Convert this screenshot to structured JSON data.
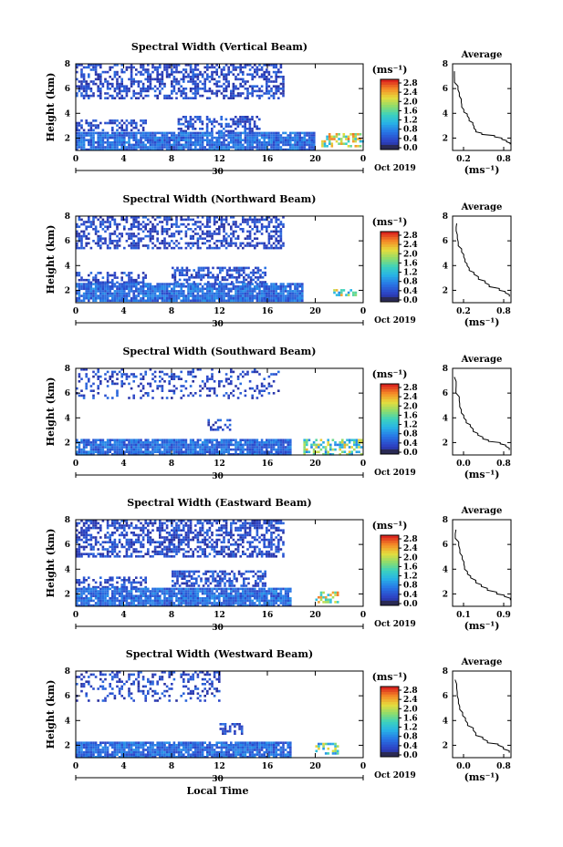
{
  "chart_data": [
    {
      "type": "heatmap",
      "title": "Spectral Width (Vertical Beam)",
      "ylabel": "Height (km)",
      "ylim": [
        1,
        8
      ],
      "yticks": [
        2,
        4,
        6,
        8
      ],
      "xticks": [
        "0",
        "4",
        "8",
        "12",
        "16",
        "20",
        "0"
      ],
      "date_label": "30",
      "month_label": "Oct 2019",
      "colorbar": {
        "unit": "(ms⁻¹)",
        "ticks": [
          "2.8",
          "2.4",
          "2.0",
          "1.6",
          "1.2",
          "0.8",
          "0.4",
          "0.0"
        ],
        "range": [
          0.0,
          2.8
        ]
      },
      "average": {
        "title": "Average",
        "xlabel": "(ms⁻¹)",
        "xticks": [
          "0.2",
          "0.8"
        ],
        "xlim": [
          0.0,
          1.0
        ],
        "ylim": [
          1,
          8
        ],
        "yticks": [
          2,
          4,
          6,
          8
        ],
        "profile": [
          [
            0.98,
            1.5
          ],
          [
            0.9,
            1.7
          ],
          [
            0.85,
            1.9
          ],
          [
            0.7,
            2.1
          ],
          [
            0.5,
            2.3
          ],
          [
            0.4,
            2.5
          ],
          [
            0.36,
            2.8
          ],
          [
            0.33,
            3.1
          ],
          [
            0.29,
            3.4
          ],
          [
            0.24,
            3.8
          ],
          [
            0.2,
            4.1
          ],
          [
            0.18,
            4.5
          ],
          [
            0.13,
            4.9
          ],
          [
            0.1,
            5.4
          ],
          [
            0.07,
            5.9
          ],
          [
            0.05,
            6.5
          ],
          [
            0.04,
            7.0
          ],
          [
            0.05,
            7.4
          ]
        ]
      },
      "clusters": [
        {
          "x": [
            0,
            17.5
          ],
          "y": [
            5.1,
            8
          ],
          "level": 0.35,
          "density": 0.55
        },
        {
          "x": [
            0,
            6
          ],
          "y": [
            2.6,
            3.5
          ],
          "level": 0.4,
          "density": 0.5
        },
        {
          "x": [
            8.5,
            15.5
          ],
          "y": [
            2.5,
            3.8
          ],
          "level": 0.4,
          "density": 0.55
        },
        {
          "x": [
            0,
            20
          ],
          "y": [
            1.0,
            2.5
          ],
          "level": 0.6,
          "density": 0.9
        },
        {
          "x": [
            20.5,
            24
          ],
          "y": [
            1.2,
            2.4
          ],
          "level": 1.8,
          "density": 0.6
        }
      ]
    },
    {
      "type": "heatmap",
      "title": "Spectral Width (Northward Beam)",
      "ylabel": "Height (km)",
      "ylim": [
        1,
        8
      ],
      "yticks": [
        2,
        4,
        6,
        8
      ],
      "xticks": [
        "0",
        "4",
        "8",
        "12",
        "16",
        "20",
        "0"
      ],
      "date_label": "30",
      "month_label": "Oct 2019",
      "colorbar": {
        "unit": "(ms⁻¹)",
        "ticks": [
          "2.8",
          "2.4",
          "2.0",
          "1.6",
          "1.2",
          "0.8",
          "0.4",
          "0.0"
        ],
        "range": [
          0.0,
          2.8
        ]
      },
      "average": {
        "title": "Average",
        "xlabel": "(ms⁻¹)",
        "xticks": [
          "0.2",
          "0.8"
        ],
        "xlim": [
          0.0,
          1.0
        ],
        "ylim": [
          1,
          8
        ],
        "yticks": [
          2,
          4,
          6,
          8
        ],
        "profile": [
          [
            0.99,
            1.5
          ],
          [
            0.92,
            1.8
          ],
          [
            0.8,
            2.0
          ],
          [
            0.65,
            2.3
          ],
          [
            0.55,
            2.6
          ],
          [
            0.45,
            2.9
          ],
          [
            0.38,
            3.3
          ],
          [
            0.3,
            3.6
          ],
          [
            0.25,
            4.0
          ],
          [
            0.2,
            4.3
          ],
          [
            0.17,
            4.7
          ],
          [
            0.15,
            5.1
          ],
          [
            0.12,
            5.6
          ],
          [
            0.09,
            6.2
          ],
          [
            0.07,
            6.8
          ],
          [
            0.05,
            7.4
          ]
        ]
      },
      "clusters": [
        {
          "x": [
            0,
            17.5
          ],
          "y": [
            5.3,
            8
          ],
          "level": 0.35,
          "density": 0.5
        },
        {
          "x": [
            0,
            6
          ],
          "y": [
            2.6,
            3.5
          ],
          "level": 0.4,
          "density": 0.5
        },
        {
          "x": [
            8,
            16
          ],
          "y": [
            2.6,
            3.9
          ],
          "level": 0.4,
          "density": 0.55
        },
        {
          "x": [
            0,
            19
          ],
          "y": [
            1.0,
            2.6
          ],
          "level": 0.6,
          "density": 0.9
        },
        {
          "x": [
            21.5,
            23.5
          ],
          "y": [
            1.5,
            2.1
          ],
          "level": 1.6,
          "density": 0.6
        }
      ]
    },
    {
      "type": "heatmap",
      "title": "Spectral Width (Southward Beam)",
      "ylabel": "Height (km)",
      "ylim": [
        1,
        8
      ],
      "yticks": [
        2,
        4,
        6,
        8
      ],
      "xticks": [
        "0",
        "4",
        "8",
        "12",
        "16",
        "20",
        "0"
      ],
      "date_label": "30",
      "month_label": "Oct 2019",
      "colorbar": {
        "unit": "(ms⁻¹)",
        "ticks": [
          "2.8",
          "2.4",
          "2.0",
          "1.6",
          "1.2",
          "0.8",
          "0.4",
          "0.0"
        ],
        "range": [
          0.0,
          2.8
        ]
      },
      "average": {
        "title": "Average",
        "xlabel": "(ms⁻¹)",
        "xticks": [
          "0.0",
          "0.8"
        ],
        "xlim": [
          0.0,
          1.0
        ],
        "ylim": [
          1,
          8
        ],
        "yticks": [
          2,
          4,
          6,
          8
        ],
        "profile": [
          [
            0.98,
            1.4
          ],
          [
            0.9,
            1.7
          ],
          [
            0.8,
            1.9
          ],
          [
            0.6,
            2.1
          ],
          [
            0.5,
            2.3
          ],
          [
            0.42,
            2.6
          ],
          [
            0.33,
            2.9
          ],
          [
            0.28,
            3.3
          ],
          [
            0.22,
            3.6
          ],
          [
            0.18,
            4.0
          ],
          [
            0.15,
            4.4
          ],
          [
            0.12,
            4.9
          ],
          [
            0.1,
            5.4
          ],
          [
            0.08,
            6.0
          ],
          [
            0.06,
            6.6
          ],
          [
            0.05,
            7.3
          ]
        ]
      },
      "clusters": [
        {
          "x": [
            0,
            17
          ],
          "y": [
            5.5,
            8
          ],
          "level": 0.35,
          "density": 0.25
        },
        {
          "x": [
            11,
            13
          ],
          "y": [
            3.0,
            3.9
          ],
          "level": 0.4,
          "density": 0.5
        },
        {
          "x": [
            0,
            18
          ],
          "y": [
            1.0,
            2.3
          ],
          "level": 0.6,
          "density": 0.9
        },
        {
          "x": [
            19,
            24
          ],
          "y": [
            1.0,
            2.3
          ],
          "level": 1.5,
          "density": 0.5
        }
      ]
    },
    {
      "type": "heatmap",
      "title": "Spectral Width (Eastward Beam)",
      "ylabel": "Height (km)",
      "ylim": [
        1,
        8
      ],
      "yticks": [
        2,
        4,
        6,
        8
      ],
      "xticks": [
        "0",
        "4",
        "8",
        "12",
        "16",
        "20",
        "0"
      ],
      "date_label": "30",
      "month_label": "Oct 2019",
      "colorbar": {
        "unit": "(ms⁻¹)",
        "ticks": [
          "2.8",
          "2.4",
          "2.0",
          "1.6",
          "1.2",
          "0.8",
          "0.4",
          "0.0"
        ],
        "range": [
          0.0,
          2.8
        ]
      },
      "average": {
        "title": "Average",
        "xlabel": "(ms⁻¹)",
        "xticks": [
          "0.1",
          "0.9"
        ],
        "xlim": [
          0.0,
          1.0
        ],
        "ylim": [
          1,
          8
        ],
        "yticks": [
          2,
          4,
          6,
          8
        ],
        "profile": [
          [
            0.98,
            1.5
          ],
          [
            0.88,
            1.8
          ],
          [
            0.78,
            2.0
          ],
          [
            0.6,
            2.3
          ],
          [
            0.5,
            2.6
          ],
          [
            0.4,
            2.9
          ],
          [
            0.33,
            3.3
          ],
          [
            0.27,
            3.6
          ],
          [
            0.22,
            4.0
          ],
          [
            0.18,
            4.4
          ],
          [
            0.15,
            4.8
          ],
          [
            0.12,
            5.3
          ],
          [
            0.09,
            5.9
          ],
          [
            0.07,
            6.5
          ],
          [
            0.05,
            7.2
          ]
        ]
      },
      "clusters": [
        {
          "x": [
            0,
            17.5
          ],
          "y": [
            5.0,
            8
          ],
          "level": 0.35,
          "density": 0.55
        },
        {
          "x": [
            0,
            6
          ],
          "y": [
            2.5,
            3.4
          ],
          "level": 0.4,
          "density": 0.5
        },
        {
          "x": [
            8,
            16
          ],
          "y": [
            2.5,
            3.9
          ],
          "level": 0.4,
          "density": 0.55
        },
        {
          "x": [
            0,
            18
          ],
          "y": [
            1.0,
            2.5
          ],
          "level": 0.6,
          "density": 0.9
        },
        {
          "x": [
            20,
            22
          ],
          "y": [
            1.3,
            2.2
          ],
          "level": 1.8,
          "density": 0.6
        }
      ]
    },
    {
      "type": "heatmap",
      "title": "Spectral Width (Westward Beam)",
      "ylabel": "Height (km)",
      "ylim": [
        1,
        8
      ],
      "yticks": [
        2,
        4,
        6,
        8
      ],
      "xticks": [
        "0",
        "4",
        "8",
        "12",
        "16",
        "20",
        "0"
      ],
      "date_label": "30",
      "month_label": "Oct 2019",
      "xlabel": "Local Time",
      "colorbar": {
        "unit": "(ms⁻¹)",
        "ticks": [
          "2.8",
          "2.4",
          "2.0",
          "1.6",
          "1.2",
          "0.8",
          "0.4",
          "0.0"
        ],
        "range": [
          0.0,
          2.8
        ]
      },
      "average": {
        "title": "Average",
        "xlabel": "(ms⁻¹)",
        "xticks": [
          "0.0",
          "0.8"
        ],
        "xlim": [
          0.0,
          1.0
        ],
        "ylim": [
          1,
          8
        ],
        "yticks": [
          2,
          4,
          6,
          8
        ],
        "profile": [
          [
            0.97,
            1.4
          ],
          [
            0.88,
            1.7
          ],
          [
            0.8,
            2.0
          ],
          [
            0.62,
            2.2
          ],
          [
            0.52,
            2.5
          ],
          [
            0.42,
            2.8
          ],
          [
            0.33,
            3.2
          ],
          [
            0.26,
            3.6
          ],
          [
            0.2,
            4.0
          ],
          [
            0.16,
            4.4
          ],
          [
            0.12,
            4.9
          ],
          [
            0.1,
            5.4
          ],
          [
            0.08,
            6.0
          ],
          [
            0.06,
            6.6
          ],
          [
            0.05,
            7.3
          ]
        ]
      },
      "clusters": [
        {
          "x": [
            0,
            12
          ],
          "y": [
            5.6,
            8
          ],
          "level": 0.35,
          "density": 0.3
        },
        {
          "x": [
            12,
            14
          ],
          "y": [
            2.8,
            3.8
          ],
          "level": 0.4,
          "density": 0.5
        },
        {
          "x": [
            0,
            18
          ],
          "y": [
            1.0,
            2.3
          ],
          "level": 0.6,
          "density": 0.9
        },
        {
          "x": [
            20,
            22
          ],
          "y": [
            1.3,
            2.2
          ],
          "level": 1.4,
          "density": 0.5
        }
      ]
    }
  ]
}
